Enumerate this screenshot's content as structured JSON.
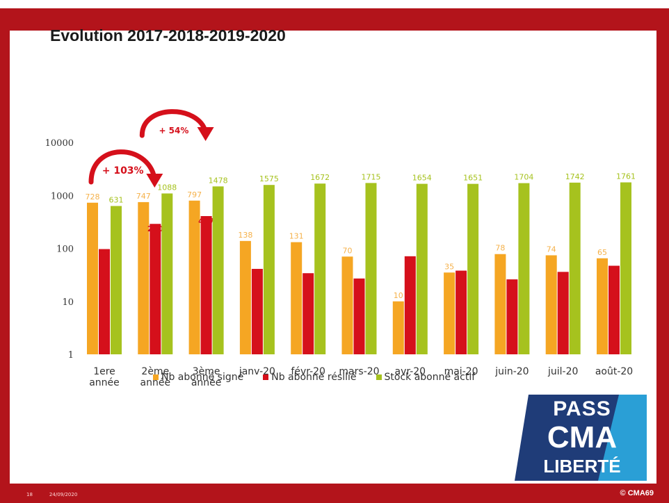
{
  "title": "Evolution 2017-2018-2019-2020",
  "chart_data": {
    "type": "bar",
    "title": "Evolution 2017-2018-2019-2020",
    "yscale": "log",
    "ylim": [
      1,
      10000
    ],
    "yticks": [
      1,
      10,
      100,
      1000,
      10000
    ],
    "grid": false,
    "legend_position": "bottom",
    "categories": [
      [
        "1ere",
        "année"
      ],
      [
        "2ème",
        "année"
      ],
      [
        "3ème",
        "année"
      ],
      [
        "janv-20"
      ],
      [
        "févr-20"
      ],
      [
        "mars-20"
      ],
      [
        "avr-20"
      ],
      [
        "mai-20"
      ],
      [
        "juin-20"
      ],
      [
        "juil-20"
      ],
      [
        "août-20"
      ]
    ],
    "series": [
      {
        "name": "Nb abonné signé",
        "color": "#f5a623",
        "values": [
          728,
          747,
          797,
          138,
          131,
          70,
          10,
          35,
          78,
          74,
          65
        ],
        "labels": [
          "728",
          "747",
          "797",
          "138",
          "131",
          "70",
          "10",
          "35",
          "78",
          "74",
          "65"
        ]
      },
      {
        "name": "Nb abonné résilié",
        "color": "#d5101b",
        "values": [
          97,
          290,
          407,
          41,
          34,
          27,
          71,
          38,
          26,
          36,
          47
        ],
        "labels": [
          "97",
          "290",
          "407",
          "41",
          "34",
          "27",
          "71",
          "38",
          "26",
          "36",
          "47"
        ]
      },
      {
        "name": "Stock abonné actif",
        "color": "#a6c21e",
        "values": [
          631,
          1088,
          1478,
          1575,
          1672,
          1715,
          1654,
          1651,
          1704,
          1742,
          1761
        ],
        "labels": [
          "631",
          "1088",
          "1478",
          "1575",
          "1672",
          "1715",
          "1654",
          "1651",
          "1704",
          "1742",
          "1761"
        ]
      }
    ],
    "annotations": [
      {
        "text": "+ 103%",
        "from_category": 0,
        "to_category": 1
      },
      {
        "text": "+ 54%",
        "from_category": 1,
        "to_category": 2
      }
    ]
  },
  "logo": {
    "line1": "PASS",
    "line2": "CMA",
    "line3": "LIBERTÉ",
    "colors": {
      "dark": "#1f3c78",
      "light": "#2a9fd6"
    }
  },
  "footer": {
    "page": "18",
    "date": "24/09/2020",
    "copyright": "© CMA69"
  }
}
